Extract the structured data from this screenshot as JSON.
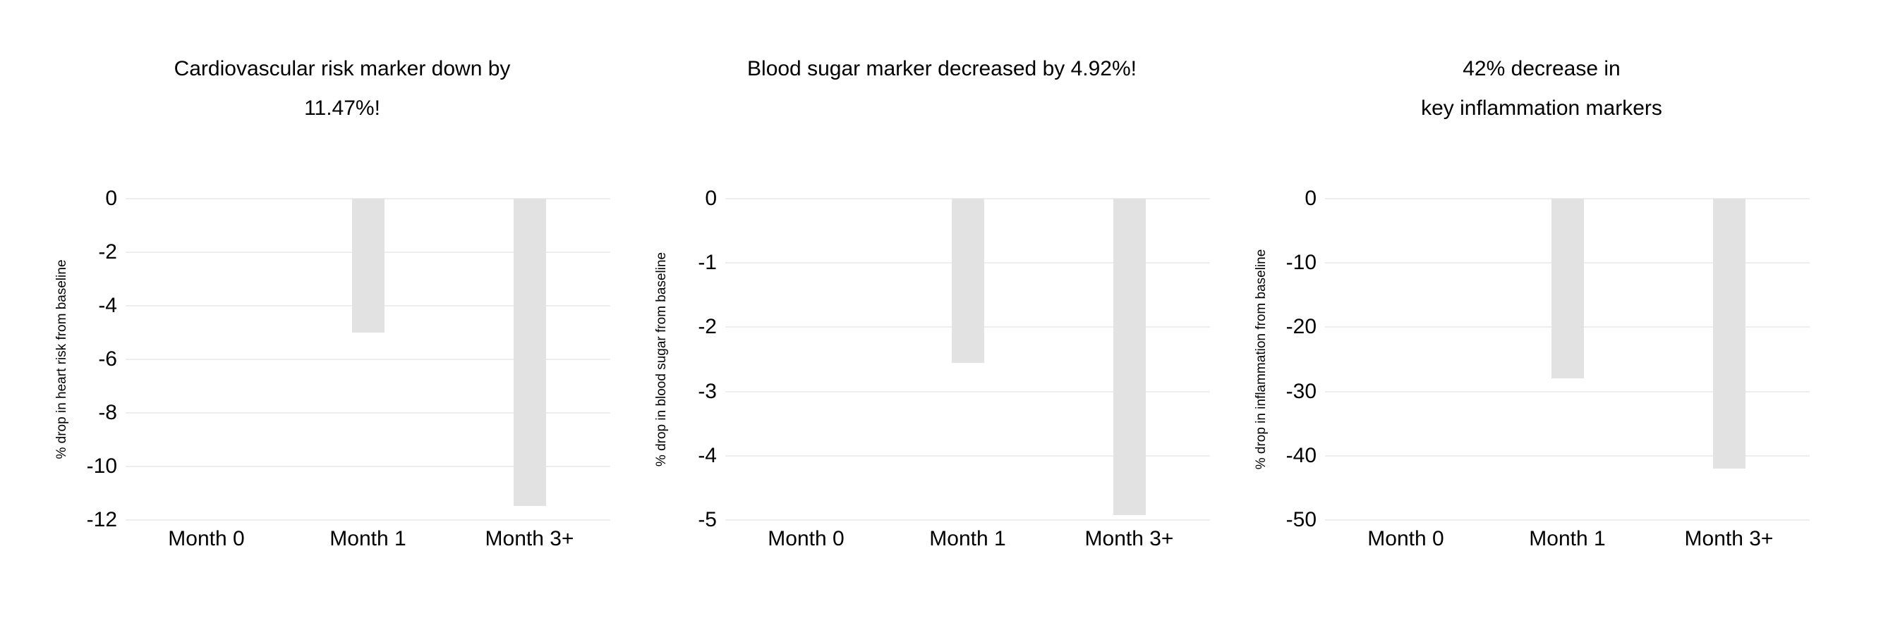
{
  "page": {
    "background_color": "#ffffff",
    "text_color": "#000000"
  },
  "chart_data": [
    {
      "type": "bar",
      "title": "Cardiovascular risk marker down by 11.47%!",
      "title_lines": [
        "Cardiovascular risk marker down by",
        "11.47%!"
      ],
      "categories": [
        "Month 0",
        "Month 1",
        "Month 3+"
      ],
      "values": [
        0,
        -5,
        -11.47
      ],
      "xlabel": "",
      "ylabel": "% drop in heart risk from baseline",
      "ylim": [
        -12,
        0
      ],
      "yticks": [
        0,
        -2,
        -4,
        -6,
        -8,
        -10,
        -12
      ],
      "ytick_labels": [
        "0",
        "-2",
        "-4",
        "-6",
        "-8",
        "-10",
        "-12"
      ],
      "grid": true,
      "legend": false,
      "bar_color": "#e2e2e2",
      "grid_color": "#eeeeee"
    },
    {
      "type": "bar",
      "title": "Blood sugar marker decreased by 4.92%!",
      "title_lines": [
        "Blood sugar marker decreased by 4.92%!"
      ],
      "categories": [
        "Month 0",
        "Month 1",
        "Month 3+"
      ],
      "values": [
        0,
        -2.55,
        -4.92
      ],
      "xlabel": "",
      "ylabel": "% drop in blood sugar from baseline",
      "ylim": [
        -5,
        0
      ],
      "yticks": [
        0,
        -1,
        -2,
        -3,
        -4,
        -5
      ],
      "ytick_labels": [
        "0",
        "-1",
        "-2",
        "-3",
        "-4",
        "-5"
      ],
      "grid": true,
      "legend": false,
      "bar_color": "#e2e2e2",
      "grid_color": "#eeeeee"
    },
    {
      "type": "bar",
      "title": "42% decrease in key inflammation markers",
      "title_lines": [
        "42% decrease in",
        "key inflammation markers"
      ],
      "categories": [
        "Month 0",
        "Month 1",
        "Month 3+"
      ],
      "values": [
        0,
        -28,
        -42
      ],
      "xlabel": "",
      "ylabel": "% drop in inflammation from baseline",
      "ylim": [
        -50,
        0
      ],
      "yticks": [
        0,
        -10,
        -20,
        -30,
        -40,
        -50
      ],
      "ytick_labels": [
        "0",
        "-10",
        "-20",
        "-30",
        "-40",
        "-50"
      ],
      "grid": true,
      "legend": false,
      "bar_color": "#e2e2e2",
      "grid_color": "#eeeeee"
    }
  ]
}
